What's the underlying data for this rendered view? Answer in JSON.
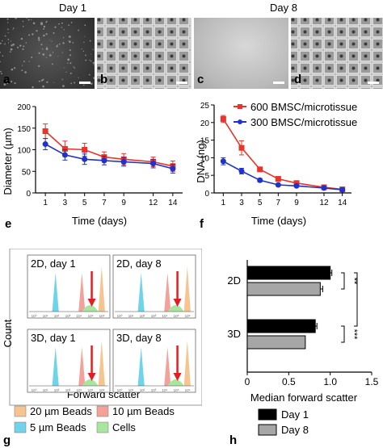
{
  "panels": {
    "day1_label": "Day 1",
    "day8_label": "Day 8",
    "letters": [
      "a",
      "b",
      "c",
      "d",
      "e",
      "f",
      "g",
      "h"
    ]
  },
  "colors": {
    "red": "#e8342a",
    "blue": "#1f33c8",
    "black": "#000000",
    "gray": "#a6a6a6",
    "beads20": "#f6c48f",
    "beads10": "#f2a29a",
    "beads5": "#6fd4ea",
    "cells": "#a8e6a0",
    "arrow": "#e02020"
  },
  "chart_data": [
    {
      "id": "e",
      "type": "line",
      "xlabel": "Time (days)",
      "ylabel": "Diameter (µm)",
      "x": [
        1,
        3,
        5,
        7,
        9,
        12,
        14
      ],
      "xticks": [
        "1",
        "3",
        "5",
        "7",
        "9",
        "12",
        "14"
      ],
      "ylim": [
        0,
        200
      ],
      "yticks": [
        "0",
        "50",
        "100",
        "150",
        "200"
      ],
      "series": [
        {
          "color": "red",
          "values": [
            143,
            102,
            100,
            83,
            78,
            72,
            62
          ],
          "errors": [
            17,
            18,
            15,
            12,
            13,
            11,
            12
          ]
        },
        {
          "color": "blue",
          "values": [
            113,
            88,
            78,
            75,
            72,
            68,
            56
          ],
          "errors": [
            13,
            12,
            12,
            10,
            10,
            10,
            10
          ]
        }
      ]
    },
    {
      "id": "f",
      "type": "line",
      "xlabel": "Time (days)",
      "ylabel": "DNA (ng)",
      "x": [
        1,
        3,
        5,
        7,
        9,
        12,
        14
      ],
      "xticks": [
        "1",
        "3",
        "5",
        "7",
        "9",
        "12",
        "14"
      ],
      "ylim": [
        0,
        25
      ],
      "yticks": [
        "0",
        "5",
        "10",
        "15",
        "20",
        "25"
      ],
      "legend": "top-right",
      "series": [
        {
          "name": "600 BMSC/microtissue",
          "color": "red",
          "values": [
            21,
            12.8,
            6.7,
            4.0,
            2.8,
            1.6,
            1.0
          ],
          "errors": [
            1.0,
            2.0,
            0.6,
            0.5,
            0.4,
            0.3,
            0.2
          ]
        },
        {
          "name": "300 BMSC/microtissue",
          "color": "blue",
          "values": [
            9.0,
            6.2,
            3.6,
            2.3,
            2.0,
            1.4,
            0.9
          ],
          "errors": [
            1.0,
            0.8,
            0.5,
            0.3,
            0.3,
            0.2,
            0.2
          ]
        }
      ]
    },
    {
      "id": "g",
      "type": "area",
      "ylabel": "Count",
      "xlabel": "Forward scatter",
      "xticks": [
        "10⁰",
        "10¹",
        "10²",
        "10³",
        "10⁴",
        "10⁵",
        "10⁶"
      ],
      "subplots": [
        {
          "title": "2D, day 1"
        },
        {
          "title": "2D, day 8"
        },
        {
          "title": "3D, day 1"
        },
        {
          "title": "3D, day 8"
        }
      ],
      "legend": [
        {
          "name": "20 µm Beads",
          "color": "beads20"
        },
        {
          "name": "10 µm Beads",
          "color": "beads10"
        },
        {
          "name": "5 µm Beads",
          "color": "beads5"
        },
        {
          "name": "Cells",
          "color": "cells"
        }
      ]
    },
    {
      "id": "h",
      "type": "bar",
      "orientation": "horizontal",
      "xlabel": "Median forward scatter",
      "categories": [
        "2D",
        "3D"
      ],
      "xlim": [
        0,
        1.5
      ],
      "xticks": [
        "0",
        "0.5",
        "1.0",
        "1.5"
      ],
      "series": [
        {
          "name": "Day 1",
          "color": "black",
          "values": [
            1.0,
            0.82
          ],
          "errors": [
            0.02,
            0.02
          ]
        },
        {
          "name": "Day 8",
          "color": "gray",
          "values": [
            0.88,
            0.7
          ],
          "errors": [
            0.03,
            0.0
          ]
        }
      ],
      "significance": [
        "**",
        "***"
      ]
    }
  ]
}
